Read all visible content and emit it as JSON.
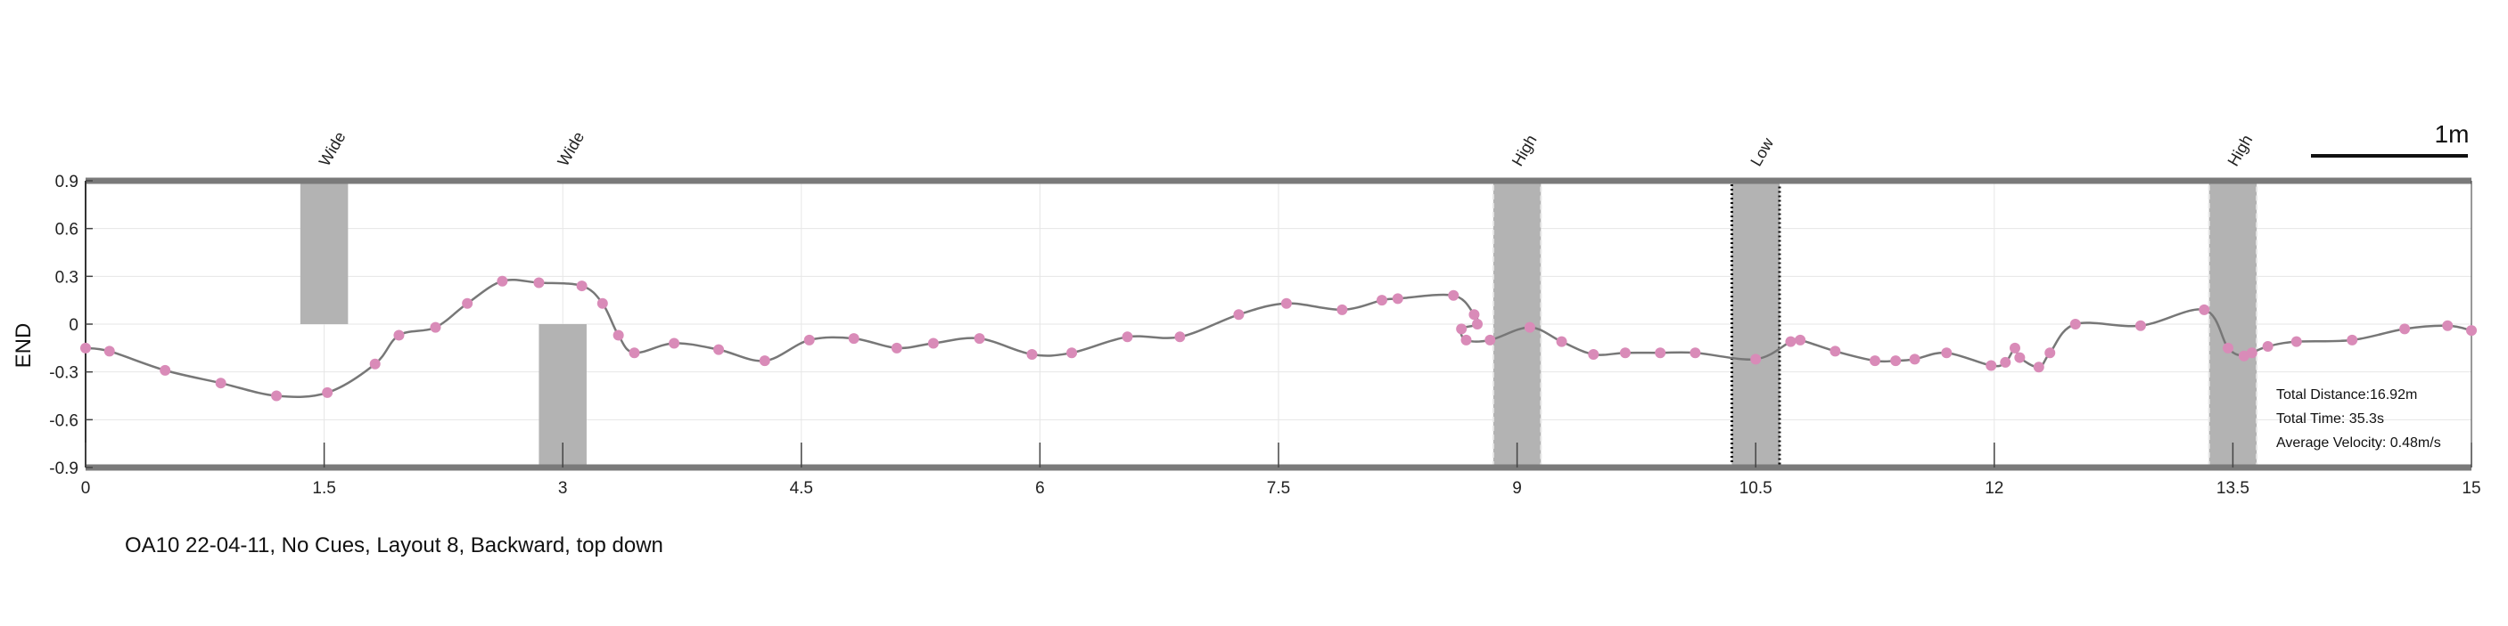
{
  "chart_data": {
    "type": "line",
    "title": "",
    "xlabel": "",
    "ylabel": "END",
    "xlim": [
      0,
      15
    ],
    "ylim": [
      -0.9,
      0.9
    ],
    "x_ticks": [
      "0",
      "1.5",
      "3",
      "4.5",
      "6",
      "7.5",
      "9",
      "10.5",
      "12",
      "13.5",
      "15"
    ],
    "y_ticks": [
      "0.9",
      "0.6",
      "0.3",
      "0",
      "-0.3",
      "-0.6",
      "-0.9"
    ],
    "grid": true,
    "colors": {
      "trajectory": "#777777",
      "points": "#d98bb8",
      "obstacle": "#b3b3b3",
      "boundary": "#7a7a7a"
    },
    "obstacles": [
      {
        "label": "Wide",
        "x0": 1.35,
        "x1": 1.65,
        "y0": 0,
        "y1": 0.9,
        "style": "solid"
      },
      {
        "label": "Wide",
        "x0": 2.85,
        "x1": 3.15,
        "y0": -0.9,
        "y1": 0,
        "style": "solid"
      },
      {
        "label": "High",
        "x0": 8.85,
        "x1": 9.15,
        "y0": -0.9,
        "y1": 0.9,
        "style": "dashed"
      },
      {
        "label": "Low",
        "x0": 10.35,
        "x1": 10.65,
        "y0": -0.9,
        "y1": 0.9,
        "style": "dotted"
      },
      {
        "label": "High",
        "x0": 13.35,
        "x1": 13.65,
        "y0": -0.9,
        "y1": 0.9,
        "style": "dashed"
      }
    ],
    "series": [
      {
        "x": [
          0,
          0.15,
          0.5,
          0.85,
          1.2,
          1.52,
          1.82,
          1.97,
          2.2,
          2.4,
          2.62,
          2.85,
          3.12,
          3.25,
          3.35,
          3.45,
          3.7,
          3.98,
          4.27,
          4.55,
          4.83,
          5.1,
          5.33,
          5.62,
          5.95,
          6.2,
          6.55,
          6.88,
          7.25,
          7.55,
          7.9,
          8.15,
          8.25,
          8.6,
          8.73,
          8.75,
          8.65,
          8.68,
          8.83,
          9.08,
          9.28,
          9.48,
          9.68,
          9.9,
          10.12,
          10.5,
          10.72,
          10.78,
          11.0,
          11.25,
          11.38,
          11.5,
          11.7,
          11.98,
          12.07,
          12.13,
          12.16,
          12.28,
          12.35,
          12.51,
          12.92,
          13.32,
          13.47,
          13.57,
          13.62,
          13.72,
          13.9,
          14.25,
          14.58,
          14.85,
          15.0
        ],
        "y": [
          -0.15,
          -0.17,
          -0.29,
          -0.37,
          -0.45,
          -0.43,
          -0.25,
          -0.07,
          -0.02,
          0.13,
          0.27,
          0.26,
          0.24,
          0.13,
          -0.07,
          -0.18,
          -0.12,
          -0.16,
          -0.23,
          -0.1,
          -0.09,
          -0.15,
          -0.12,
          -0.09,
          -0.19,
          -0.18,
          -0.08,
          -0.08,
          0.06,
          0.13,
          0.09,
          0.15,
          0.16,
          0.18,
          0.06,
          0.0,
          -0.03,
          -0.1,
          -0.1,
          -0.02,
          -0.11,
          -0.19,
          -0.18,
          -0.18,
          -0.18,
          -0.22,
          -0.11,
          -0.1,
          -0.17,
          -0.23,
          -0.23,
          -0.22,
          -0.18,
          -0.26,
          -0.24,
          -0.15,
          -0.21,
          -0.27,
          -0.18,
          0.0,
          -0.01,
          0.09,
          -0.15,
          -0.2,
          -0.18,
          -0.14,
          -0.11,
          -0.1,
          -0.03,
          -0.01,
          -0.04
        ]
      }
    ],
    "stats": [
      "Total Distance:16.92m",
      "Total Time: 35.3s",
      "Average Velocity: 0.48m/s"
    ],
    "scale_bar_label": "1m",
    "caption": "OA10 22-04-11, No Cues, Layout 8, Backward, top down"
  }
}
